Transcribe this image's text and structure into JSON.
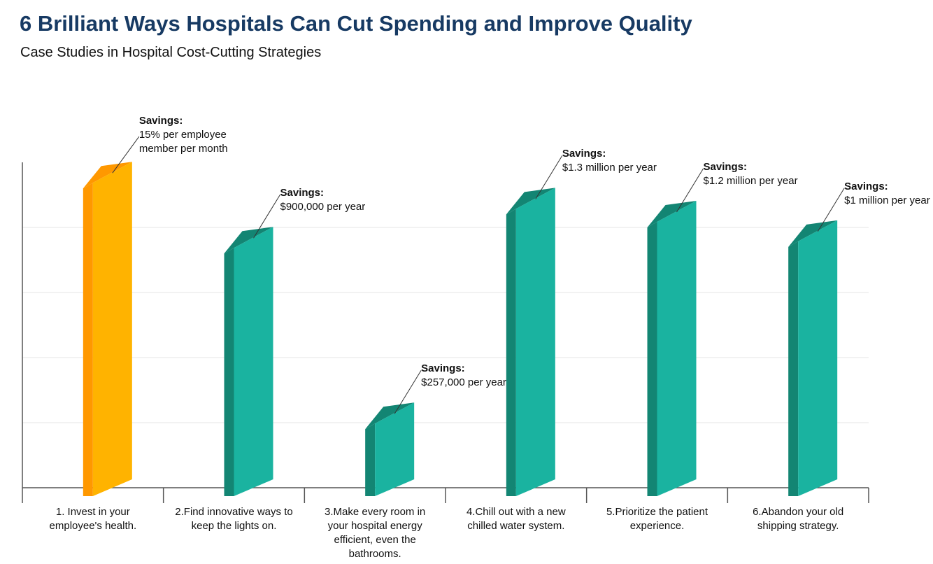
{
  "chart_data": {
    "type": "bar3d",
    "title": "6 Brilliant Ways Hospitals Can Cut Spending and Improve Quality",
    "subtitle": "Case Studies in Hospital Cost-Cutting Strategies",
    "categories": [
      "1. Invest in your employee's health.",
      "2.Find innovative ways to keep the lights on.",
      "3.Make every room in your hospital energy efficient, even the bathrooms.",
      "4.Chill out with a new chilled water system.",
      "5.Prioritize the patient experience.",
      "6.Abandon your old shipping strategy."
    ],
    "values": [
      4.6,
      3.6,
      0.9,
      4.2,
      4.0,
      3.7
    ],
    "colors": [
      "#ffb300",
      "#1ab3a0",
      "#1ab3a0",
      "#1ab3a0",
      "#1ab3a0",
      "#1ab3a0"
    ],
    "side_colors": [
      "#ff9800",
      "#138573",
      "#138573",
      "#138573",
      "#138573",
      "#138573"
    ],
    "annotations": [
      {
        "label": "Savings:",
        "text": [
          "15% per employee",
          "member per month"
        ]
      },
      {
        "label": "Savings:",
        "text": [
          "$900,000 per year"
        ]
      },
      {
        "label": "Savings:",
        "text": [
          "$257,000 per year"
        ]
      },
      {
        "label": "Savings:",
        "text": [
          "$1.3 million per year"
        ]
      },
      {
        "label": "Savings:",
        "text": [
          "$1.2 million per year"
        ]
      },
      {
        "label": "Savings:",
        "text": [
          "$1 million per year"
        ]
      }
    ],
    "ylim": [
      0,
      5
    ],
    "yticks": [
      1,
      2,
      3,
      4
    ],
    "grid": true
  }
}
